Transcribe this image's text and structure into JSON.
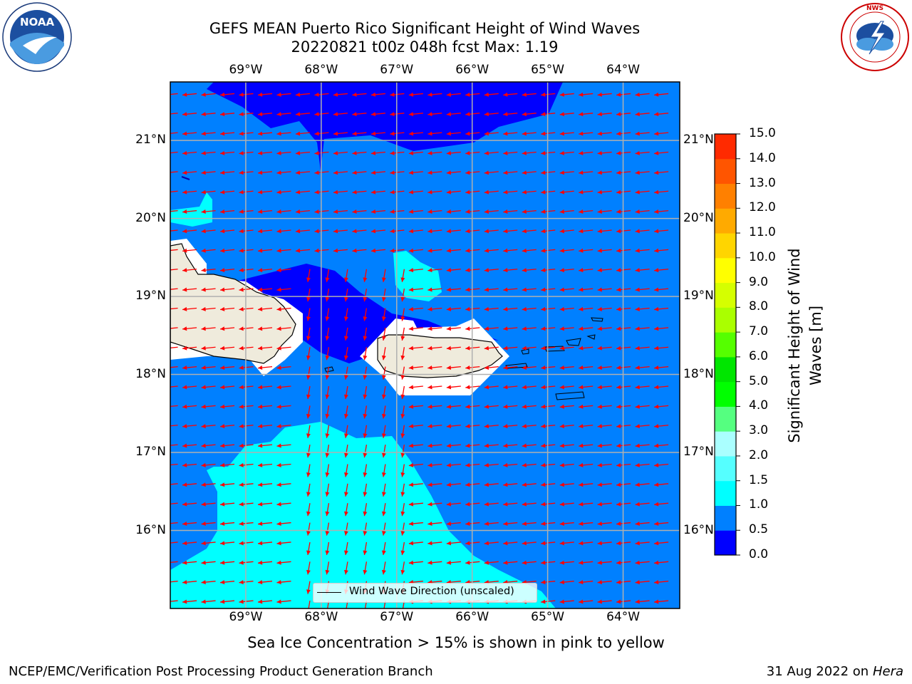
{
  "title": {
    "line1": "GEFS MEAN Puerto Rico Significant Height of Wind Waves",
    "line2": "20220821 t00z 048h fcst   Max: 1.19"
  },
  "logos": {
    "left": {
      "name": "noaa-logo",
      "text": "NOAA",
      "ring_text": "NATIONAL OCEANIC AND ATMOSPHERIC ADMINISTRATION · U.S. DEPARTMENT OF COMMERCE"
    },
    "right": {
      "name": "nws-logo",
      "ring_text": "NATIONAL WEATHER SERVICE"
    }
  },
  "map": {
    "lon_ticks": [
      "69°W",
      "68°W",
      "67°W",
      "66°W",
      "65°W",
      "64°W"
    ],
    "lat_ticks": [
      "21°N",
      "20°N",
      "19°N",
      "18°N",
      "17°N",
      "16°N"
    ],
    "lon_values": [
      -69,
      -68,
      -67,
      -66,
      -65,
      -64
    ],
    "lat_values": [
      21,
      20,
      19,
      18,
      17,
      16
    ],
    "extent": {
      "lon_min": -70.0,
      "lon_max": -63.25,
      "lat_min": 15.0,
      "lat_max": 21.75
    },
    "arrow_direction": "east-to-west (easterly trade winds)",
    "arrow_color": "#ff0000",
    "land_color": "#efebdc",
    "legend_text": "Wind Wave Direction (unscaled)"
  },
  "colorbar": {
    "label": "Significant Height of Wind Waves [m]",
    "label_line1": "Significant Height of Wind",
    "label_line2": "Waves [m]",
    "ticks": [
      "15.0",
      "14.0",
      "13.0",
      "12.0",
      "11.0",
      "10.0",
      "9.0",
      "8.0",
      "7.0",
      "6.0",
      "5.0",
      "4.0",
      "3.0",
      "2.0",
      "1.5",
      "1.0",
      "0.5",
      "0.0"
    ],
    "levels": [
      0.0,
      0.5,
      1.0,
      1.5,
      2.0,
      3.0,
      4.0,
      5.0,
      6.0,
      7.0,
      8.0,
      9.0,
      10.0,
      11.0,
      12.0,
      13.0,
      14.0,
      15.0
    ],
    "colors": [
      "#0000ff",
      "#0080ff",
      "#00ffff",
      "#55ffff",
      "#aaffff",
      "#55ff80",
      "#00ff00",
      "#00e600",
      "#55ff00",
      "#aaff00",
      "#d5ff00",
      "#ffff00",
      "#ffd500",
      "#ffaa00",
      "#ff8000",
      "#ff5500",
      "#ff2a00"
    ]
  },
  "ice_note": "Sea Ice Concentration > 15% is shown in pink to yellow",
  "footer": {
    "left": "NCEP/EMC/Verification Post Processing Product Generation Branch",
    "right_date": "31 Aug 2022 on",
    "right_host": "Hera"
  }
}
